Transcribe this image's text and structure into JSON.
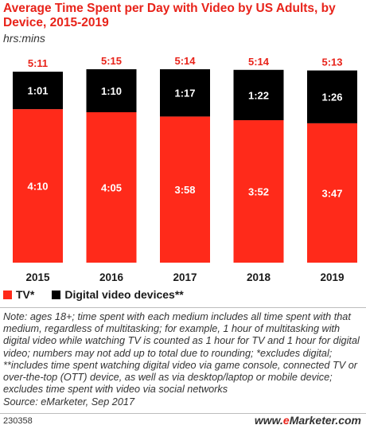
{
  "title": "Average Time Spent per Day with Video by US Adults, by Device, 2015-2019",
  "subtitle": "hrs:mins",
  "colors": {
    "tv": "#ff2a1a",
    "digital": "#000000",
    "total_label": "#e8231a"
  },
  "chart_data": {
    "type": "bar",
    "stacked": true,
    "categories": [
      "2015",
      "2016",
      "2017",
      "2018",
      "2019"
    ],
    "unit": "hrs:mins",
    "series": [
      {
        "name": "TV*",
        "values": [
          "4:10",
          "4:05",
          "3:58",
          "3:52",
          "3:47"
        ],
        "minutes": [
          250,
          245,
          238,
          232,
          227
        ]
      },
      {
        "name": "Digital video devices**",
        "values": [
          "1:01",
          "1:10",
          "1:17",
          "1:22",
          "1:26"
        ],
        "minutes": [
          61,
          70,
          77,
          82,
          86
        ]
      }
    ],
    "totals": [
      "5:11",
      "5:15",
      "5:14",
      "5:14",
      "5:13"
    ],
    "totals_minutes": [
      311,
      315,
      314,
      314,
      313
    ],
    "ylim_minutes": [
      0,
      315
    ],
    "grid": false,
    "legend_position": "bottom-left"
  },
  "note": "Note: ages 18+; time spent with each medium includes all time spent with that medium, regardless of multitasking; for example, 1 hour of multitasking with digital video while watching TV is counted as 1 hour for TV and 1 hour for digital video; numbers may not add up to total due to rounding; *excludes digital; **includes time spent watching digital video via game console, connected TV or over-the-top (OTT) device, as well as via desktop/laptop or mobile device; excludes time spent with video via social networks",
  "source": "Source: eMarketer, Sep 2017",
  "footer_id": "230358",
  "brand": {
    "prefix": "www.",
    "e": "e",
    "rest": "Marketer",
    "suffix": ".com"
  }
}
